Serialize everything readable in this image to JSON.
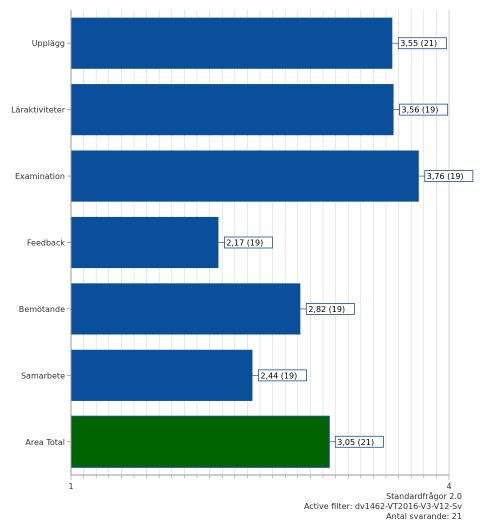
{
  "chart_data": {
    "type": "bar",
    "orientation": "horizontal",
    "categories": [
      "Upplägg",
      "Läraktiviteter",
      "Examination",
      "Feedback",
      "Bemötande",
      "Samarbete",
      "Area Total"
    ],
    "values": [
      3.55,
      3.56,
      3.76,
      2.17,
      2.82,
      2.44,
      3.05
    ],
    "value_labels": [
      "3,55 (21)",
      "3,56 (19)",
      "3,76 (19)",
      "2,17 (19)",
      "2,82 (19)",
      "2,44 (19)",
      "3,05 (21)"
    ],
    "xlim": [
      1,
      4
    ],
    "xticks": [
      "1",
      "4"
    ],
    "colors": {
      "bar": "#0A4F9C",
      "total_bar": "#006400",
      "grid": "#d9d9d9"
    },
    "grid": true
  },
  "footer": {
    "line1": "Standardfrågor 2.0",
    "line2": "Active filter: dv1462-VT2016-V3-V12-Sv",
    "line3": "Antal svarande: 21"
  }
}
